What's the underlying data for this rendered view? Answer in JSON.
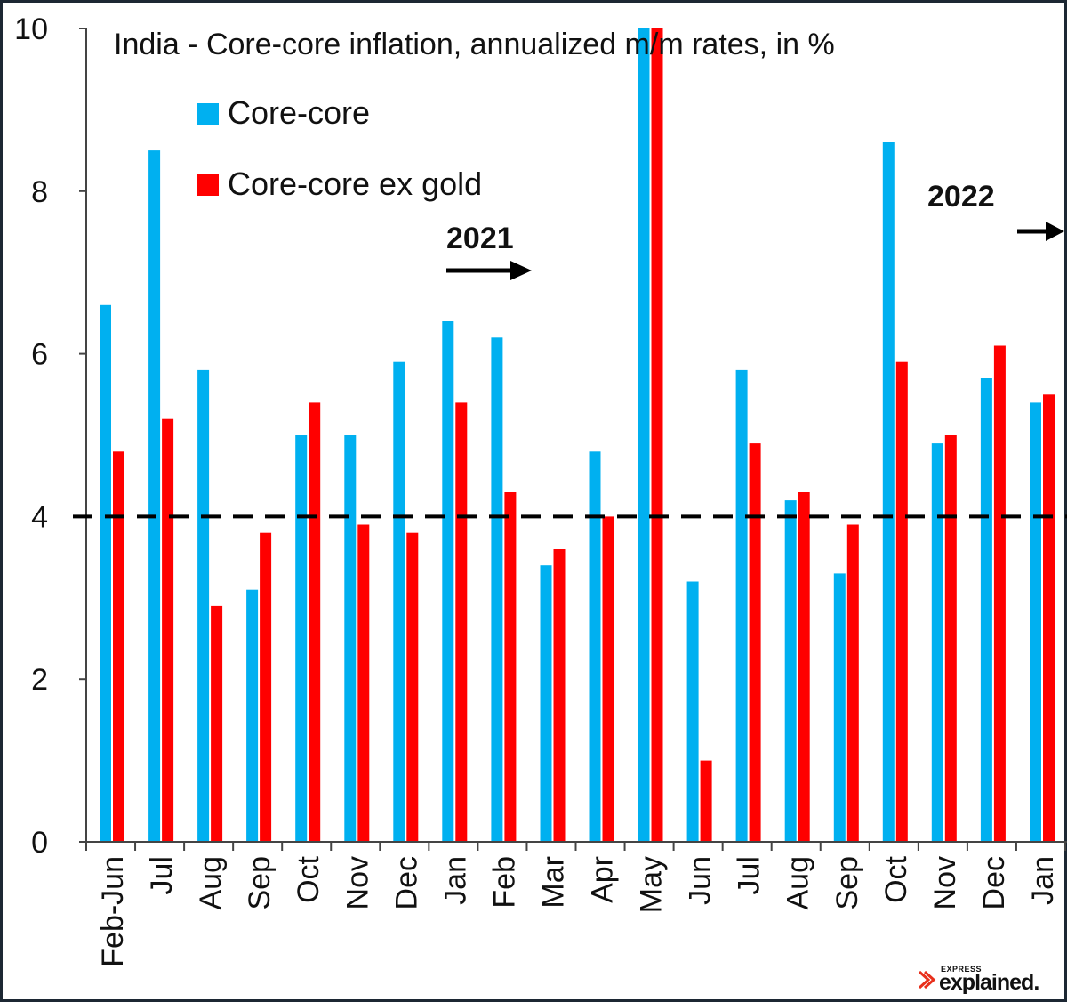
{
  "chart_data": {
    "type": "bar",
    "title": "India - Core-core inflation, annualized m/m rates, in %",
    "categories": [
      "Feb-Jun",
      "Jul",
      "Aug",
      "Sep",
      "Oct",
      "Nov",
      "Dec",
      "Jan",
      "Feb",
      "Mar",
      "Apr",
      "May",
      "Jun",
      "Jul",
      "Aug",
      "Sep",
      "Oct",
      "Nov",
      "Dec",
      "Jan"
    ],
    "series": [
      {
        "name": "Core-core",
        "color": "#00b0f0",
        "values": [
          6.6,
          8.5,
          5.8,
          3.1,
          5.0,
          5.0,
          5.9,
          6.4,
          6.2,
          3.4,
          4.8,
          10.0,
          3.2,
          5.8,
          4.2,
          3.3,
          8.6,
          4.9,
          5.7,
          5.4
        ]
      },
      {
        "name": "Core-core ex gold",
        "color": "#ff0000",
        "values": [
          4.8,
          5.2,
          2.9,
          3.8,
          5.4,
          3.9,
          3.8,
          5.4,
          4.3,
          3.6,
          4.0,
          10.0,
          1.0,
          4.9,
          4.3,
          3.9,
          5.9,
          5.0,
          6.1,
          5.5
        ]
      }
    ],
    "ylim": [
      0,
      10
    ],
    "yticks": [
      0,
      2,
      4,
      6,
      8,
      10
    ],
    "reference_line": {
      "y": 4,
      "style": "dashed",
      "color": "#000000"
    },
    "annotations": [
      {
        "text": "2021",
        "arrow": "right",
        "at_category_index": 7
      },
      {
        "text": "2022",
        "arrow": "right",
        "at_category_index": 19
      }
    ],
    "legend": "top-left",
    "grid": false
  },
  "logo": {
    "small": "EXPRESS",
    "big": "explained."
  }
}
